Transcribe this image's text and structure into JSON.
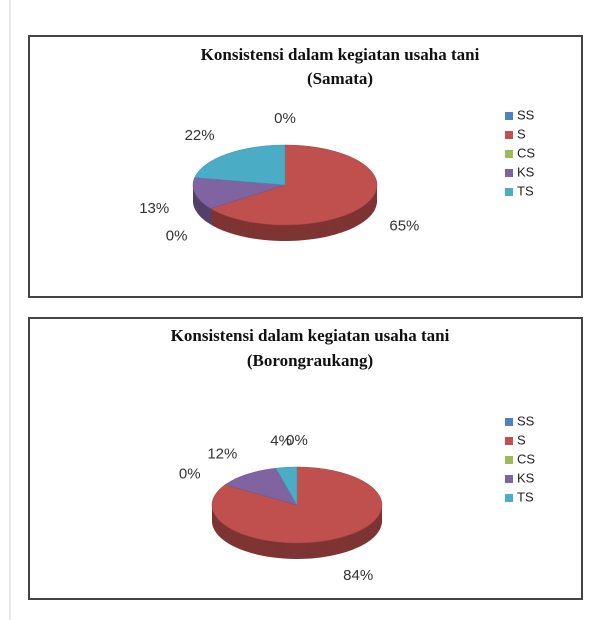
{
  "chart_data": [
    {
      "type": "pie",
      "title": "Konsistensi dalam kegiatan usaha tani",
      "subtitle": "(Samata)",
      "categories": [
        "SS",
        "S",
        "CS",
        "KS",
        "TS"
      ],
      "values": [
        0,
        65,
        0,
        13,
        22
      ],
      "value_labels": [
        "0%",
        "65%",
        "0%",
        "13%",
        "22%"
      ],
      "colors": [
        "#4f81bd",
        "#c0504d",
        "#9bbb59",
        "#8064a2",
        "#4bacc6"
      ],
      "legend": "right"
    },
    {
      "type": "pie",
      "title": "Konsistensi dalam kegiatan usaha tani",
      "subtitle": "(Borongraukang)",
      "categories": [
        "SS",
        "S",
        "CS",
        "KS",
        "TS"
      ],
      "values": [
        0,
        84,
        0,
        12,
        4
      ],
      "value_labels": [
        "0%",
        "84%",
        "0%",
        "12%",
        "4%"
      ],
      "colors": [
        "#4f81bd",
        "#c0504d",
        "#9bbb59",
        "#8064a2",
        "#4bacc6"
      ],
      "legend": "right"
    }
  ]
}
